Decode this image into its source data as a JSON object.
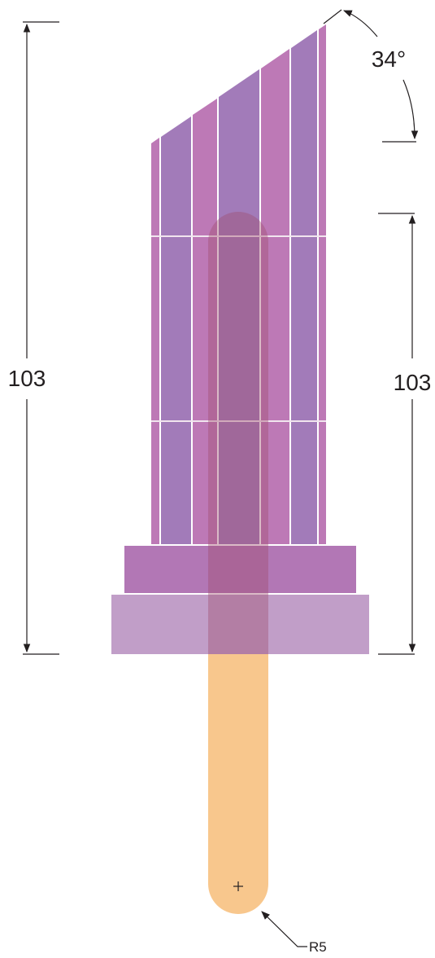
{
  "dimensions": {
    "left_height": "103",
    "right_height": "103",
    "angle": "34°",
    "radius": "R5"
  },
  "colors": {
    "stick": "#f8c78d",
    "stripe_light": "#bd79b6",
    "stripe_dark": "#a27bb9",
    "base_top": "#b277b5",
    "base_bottom": "#c19ec8",
    "inner_core": "#9d6a8e",
    "dim_line": "#231f20"
  }
}
